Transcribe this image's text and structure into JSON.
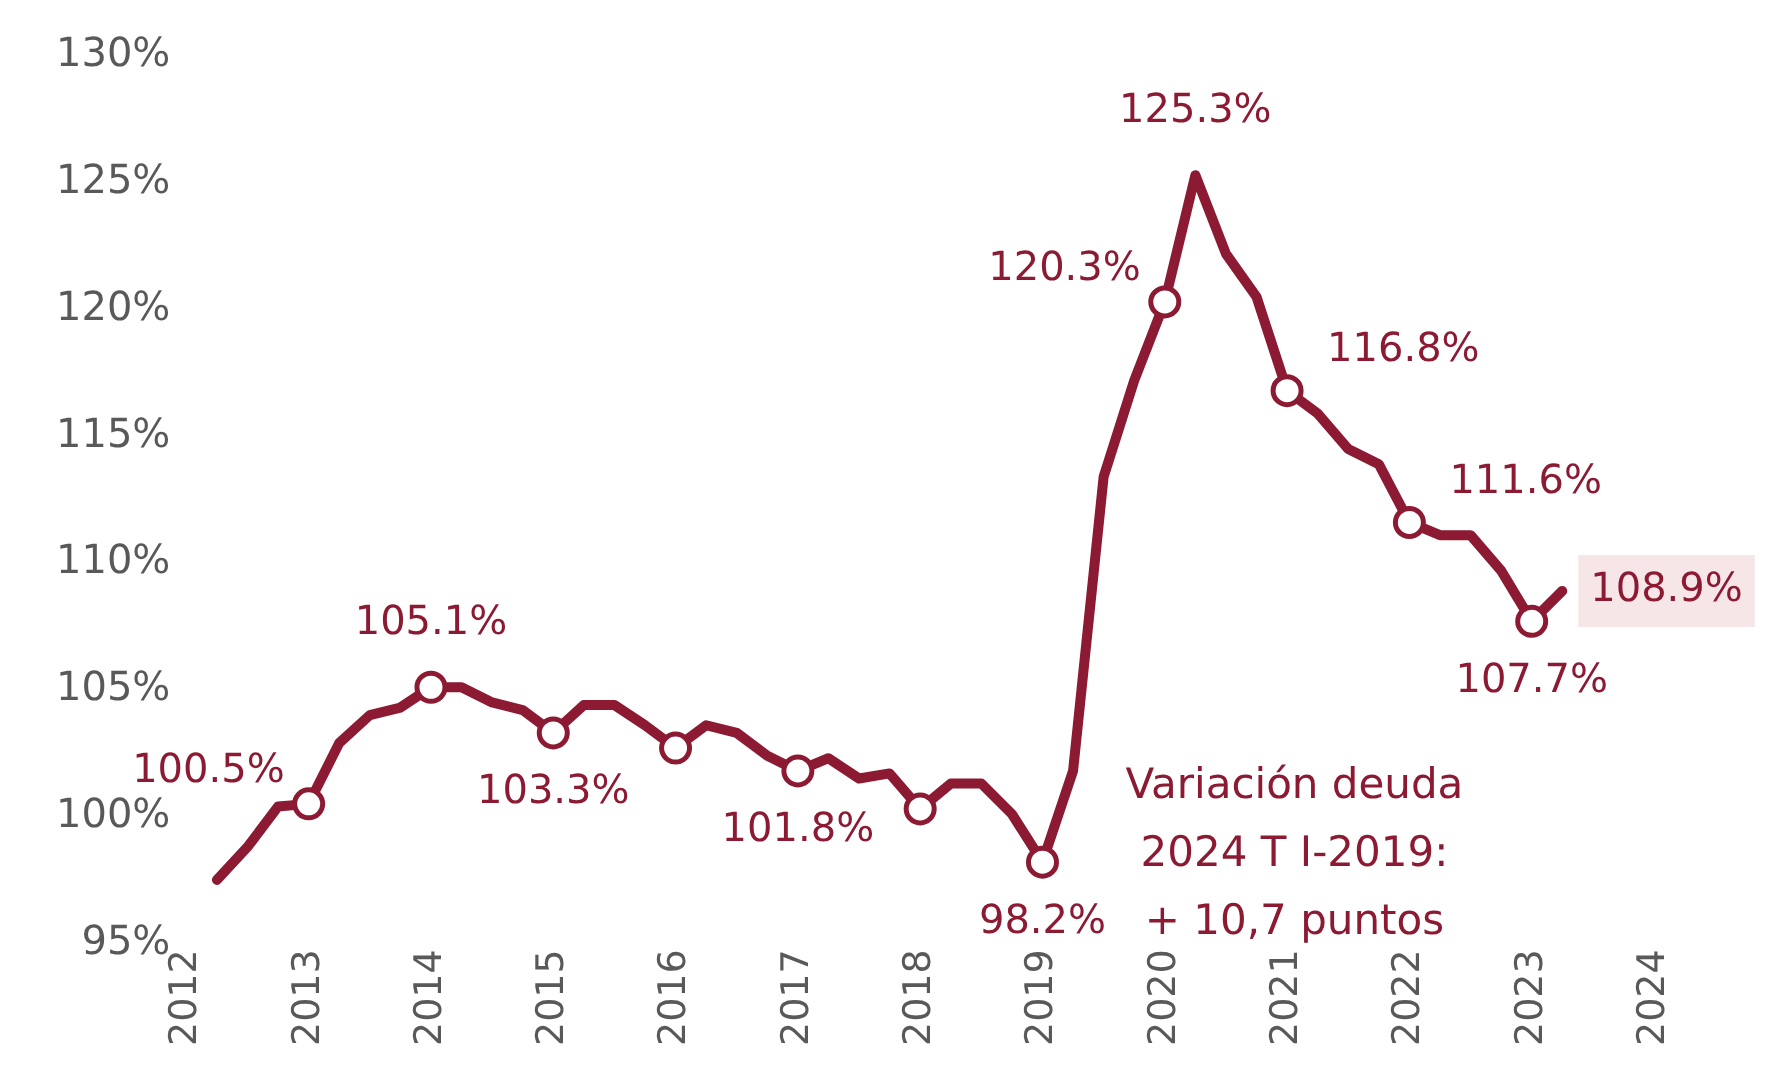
{
  "chart_data": {
    "type": "line",
    "xlim": [
      2012,
      2024
    ],
    "xticks": [
      2012,
      2013,
      2014,
      2015,
      2016,
      2017,
      2018,
      2019,
      2020,
      2021,
      2022,
      2023,
      2024
    ],
    "ylim": [
      95,
      130
    ],
    "yticks": [
      {
        "value": 95,
        "label": "95%"
      },
      {
        "value": 100,
        "label": "100%"
      },
      {
        "value": 105,
        "label": "105%"
      },
      {
        "value": 110,
        "label": "110%"
      },
      {
        "value": 115,
        "label": "115%"
      },
      {
        "value": 120,
        "label": "120%"
      },
      {
        "value": 125,
        "label": "125%"
      },
      {
        "value": 130,
        "label": "130%"
      }
    ],
    "legend": false,
    "annotations": [
      "Variación deuda\n2024 T I-2019:\n+ 10,7 puntos"
    ],
    "series": [
      {
        "type": "line",
        "color": "#8b1a32",
        "marker": "none",
        "x": [
          2012.25,
          2012.5,
          2012.75,
          2013,
          2013.25,
          2013.5,
          2013.75,
          2014,
          2014.25,
          2014.5,
          2014.75,
          2015,
          2015.25,
          2015.5,
          2015.75,
          2016,
          2016.25,
          2016.5,
          2016.75,
          2017,
          2017.25,
          2017.5,
          2017.75,
          2018,
          2018.25,
          2018.5,
          2018.75,
          2019,
          2019.25,
          2019.5,
          2019.75,
          2020,
          2020.25,
          2020.5,
          2020.75,
          2021,
          2021.25,
          2021.5,
          2021.75,
          2022,
          2022.25,
          2022.5,
          2022.75,
          2023,
          2023.25
        ],
        "values": [
          97.5,
          98.8,
          100.4,
          100.5,
          102.9,
          104.0,
          104.3,
          105.1,
          105.1,
          104.5,
          104.2,
          103.3,
          104.4,
          104.4,
          103.6,
          102.7,
          103.6,
          103.3,
          102.4,
          101.8,
          102.3,
          101.5,
          101.7,
          100.3,
          101.3,
          101.3,
          100.1,
          98.2,
          101.8,
          113.4,
          117.2,
          120.3,
          125.3,
          122.2,
          120.5,
          116.8,
          115.9,
          114.5,
          113.9,
          111.6,
          111.1,
          111.1,
          109.7,
          107.7,
          108.9
        ],
        "value_labels": [
          null,
          null,
          null,
          "100.5%",
          null,
          null,
          null,
          "105.1%",
          null,
          null,
          null,
          "103.3%",
          null,
          null,
          null,
          null,
          null,
          null,
          null,
          "101.8%",
          null,
          null,
          null,
          null,
          null,
          null,
          null,
          "98.2%",
          null,
          null,
          null,
          "120.3%",
          "125.3%",
          null,
          null,
          "116.8%",
          null,
          null,
          null,
          "111.6%",
          null,
          null,
          null,
          "107.7%",
          "108.9%"
        ]
      },
      {
        "type": "scatter",
        "color": "#8b1a32",
        "marker": "circle",
        "x": [
          2013,
          2014,
          2015,
          2016,
          2017,
          2018,
          2019,
          2020,
          2021,
          2022,
          2023
        ],
        "values": [
          100.5,
          105.1,
          103.3,
          102.7,
          101.8,
          100.3,
          98.2,
          120.3,
          116.8,
          111.6,
          107.7
        ]
      }
    ]
  }
}
